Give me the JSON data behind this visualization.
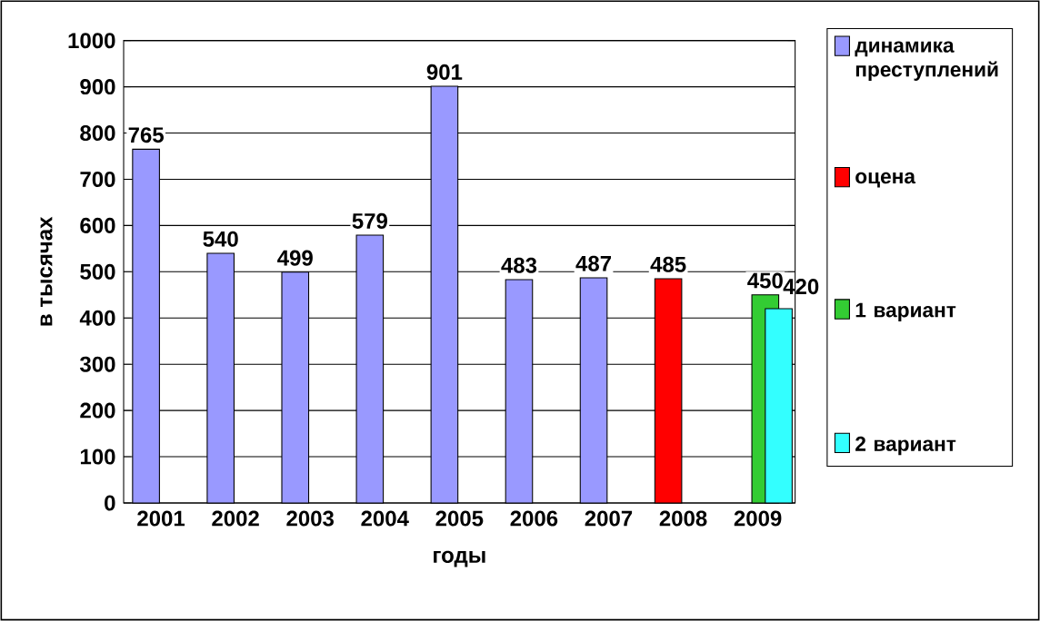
{
  "chart_data": {
    "type": "bar",
    "xlabel": "годы",
    "ylabel": "в тысячах",
    "categories": [
      "2001",
      "2002",
      "2003",
      "2004",
      "2005",
      "2006",
      "2007",
      "2008",
      "2009"
    ],
    "series": [
      {
        "name": "динамика преступлений",
        "color": "#9999ff",
        "values": [
          765,
          540,
          499,
          579,
          901,
          483,
          487,
          null,
          null
        ]
      },
      {
        "name": "оцена",
        "color": "#ff0000",
        "values": [
          null,
          null,
          null,
          null,
          null,
          null,
          null,
          485,
          null
        ]
      },
      {
        "name": "1 вариант",
        "color": "#33cc33",
        "values": [
          null,
          null,
          null,
          null,
          null,
          null,
          null,
          null,
          450
        ]
      },
      {
        "name": "2 вариант",
        "color": "#33ffff",
        "values": [
          null,
          null,
          null,
          null,
          null,
          null,
          null,
          null,
          420
        ]
      }
    ],
    "ylim": [
      0,
      1000
    ],
    "yticks": [
      0,
      100,
      200,
      300,
      400,
      500,
      600,
      700,
      800,
      900,
      1000
    ],
    "grid": "y",
    "legend": "right",
    "data_labels": true
  }
}
